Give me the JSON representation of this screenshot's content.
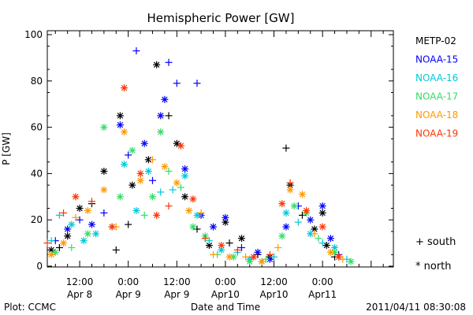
{
  "chart_data": {
    "type": "scatter",
    "title": "Hemispheric Power [GW]",
    "xlabel": "Date and Time",
    "ylabel": "P [GW]",
    "xlim": [
      "2011-04-08T04:00",
      "2011-04-11T17:30"
    ],
    "ylim": [
      0,
      100
    ],
    "yticks": [
      0,
      20,
      40,
      60,
      80,
      100
    ],
    "xticks": [
      {
        "t": "2011-04-08T12:00",
        "line1": "12:00",
        "line2": "Apr 8"
      },
      {
        "t": "2011-04-09T00:00",
        "line1": "0:00",
        "line2": "Apr 9"
      },
      {
        "t": "2011-04-09T12:00",
        "line1": "12:00",
        "line2": "Apr 9"
      },
      {
        "t": "2011-04-10T00:00",
        "line1": "0:00",
        "line2": "Apr10"
      },
      {
        "t": "2011-04-10T12:00",
        "line1": "12:00",
        "line2": "Apr10"
      },
      {
        "t": "2011-04-11T00:00",
        "line1": "0:00",
        "line2": "Apr11"
      }
    ],
    "legend_position": "right",
    "marker_legend": [
      {
        "symbol": "+",
        "label": "south"
      },
      {
        "symbol": "*",
        "label": "north"
      }
    ],
    "series": [
      {
        "name": "METP-02",
        "color": "#000000",
        "points": [
          {
            "t": "2011-04-08T05:00",
            "v": 7,
            "m": "north"
          },
          {
            "t": "2011-04-08T07:00",
            "v": 8,
            "m": "south"
          },
          {
            "t": "2011-04-08T09:00",
            "v": 13,
            "m": "north"
          },
          {
            "t": "2011-04-08T12:00",
            "v": 25,
            "m": "north"
          },
          {
            "t": "2011-04-08T15:00",
            "v": 27,
            "m": "south"
          },
          {
            "t": "2011-04-08T18:00",
            "v": 41,
            "m": "north"
          },
          {
            "t": "2011-04-08T21:00",
            "v": 7,
            "m": "south"
          },
          {
            "t": "2011-04-08T22:00",
            "v": 65,
            "m": "north"
          },
          {
            "t": "2011-04-09T00:00",
            "v": 18,
            "m": "south"
          },
          {
            "t": "2011-04-09T01:00",
            "v": 35,
            "m": "north"
          },
          {
            "t": "2011-04-09T05:00",
            "v": 46,
            "m": "north"
          },
          {
            "t": "2011-04-09T07:00",
            "v": 87,
            "m": "north"
          },
          {
            "t": "2011-04-09T10:00",
            "v": 65,
            "m": "south"
          },
          {
            "t": "2011-04-09T12:00",
            "v": 53,
            "m": "north"
          },
          {
            "t": "2011-04-09T14:00",
            "v": 30,
            "m": "north"
          },
          {
            "t": "2011-04-09T17:00",
            "v": 16,
            "m": "south"
          },
          {
            "t": "2011-04-09T20:00",
            "v": 9,
            "m": "north"
          },
          {
            "t": "2011-04-10T00:00",
            "v": 19,
            "m": "north"
          },
          {
            "t": "2011-04-10T01:00",
            "v": 10,
            "m": "south"
          },
          {
            "t": "2011-04-10T04:00",
            "v": 12,
            "m": "north"
          },
          {
            "t": "2011-04-10T08:00",
            "v": 5,
            "m": "south"
          },
          {
            "t": "2011-04-10T11:00",
            "v": 4,
            "m": "north"
          },
          {
            "t": "2011-04-10T15:00",
            "v": 51,
            "m": "south"
          },
          {
            "t": "2011-04-10T16:00",
            "v": 35,
            "m": "north"
          },
          {
            "t": "2011-04-10T19:00",
            "v": 22,
            "m": "south"
          },
          {
            "t": "2011-04-10T22:00",
            "v": 16,
            "m": "north"
          },
          {
            "t": "2011-04-11T00:00",
            "v": 23,
            "m": "north"
          },
          {
            "t": "2011-04-11T01:00",
            "v": 9,
            "m": "north"
          },
          {
            "t": "2011-04-11T03:00",
            "v": 4,
            "m": "south"
          }
        ]
      },
      {
        "name": "NOAA-15",
        "color": "#0000ff",
        "points": [
          {
            "t": "2011-04-08T06:00",
            "v": 11,
            "m": "south"
          },
          {
            "t": "2011-04-08T09:00",
            "v": 16,
            "m": "north"
          },
          {
            "t": "2011-04-08T12:00",
            "v": 20,
            "m": "south"
          },
          {
            "t": "2011-04-08T15:00",
            "v": 18,
            "m": "north"
          },
          {
            "t": "2011-04-08T18:00",
            "v": 23,
            "m": "south"
          },
          {
            "t": "2011-04-08T22:00",
            "v": 61,
            "m": "north"
          },
          {
            "t": "2011-04-09T00:00",
            "v": 48,
            "m": "south"
          },
          {
            "t": "2011-04-09T02:00",
            "v": 93,
            "m": "south"
          },
          {
            "t": "2011-04-09T04:00",
            "v": 53,
            "m": "north"
          },
          {
            "t": "2011-04-09T06:00",
            "v": 37,
            "m": "south"
          },
          {
            "t": "2011-04-09T08:00",
            "v": 65,
            "m": "north"
          },
          {
            "t": "2011-04-09T09:00",
            "v": 72,
            "m": "north"
          },
          {
            "t": "2011-04-09T10:00",
            "v": 88,
            "m": "south"
          },
          {
            "t": "2011-04-09T12:00",
            "v": 79,
            "m": "south"
          },
          {
            "t": "2011-04-09T14:00",
            "v": 42,
            "m": "north"
          },
          {
            "t": "2011-04-09T17:00",
            "v": 79,
            "m": "south"
          },
          {
            "t": "2011-04-09T18:00",
            "v": 22,
            "m": "north"
          },
          {
            "t": "2011-04-09T21:00",
            "v": 17,
            "m": "north"
          },
          {
            "t": "2011-04-10T00:00",
            "v": 21,
            "m": "north"
          },
          {
            "t": "2011-04-10T04:00",
            "v": 8,
            "m": "south"
          },
          {
            "t": "2011-04-10T08:00",
            "v": 6,
            "m": "north"
          },
          {
            "t": "2011-04-10T11:00",
            "v": 3,
            "m": "north"
          },
          {
            "t": "2011-04-10T15:00",
            "v": 17,
            "m": "north"
          },
          {
            "t": "2011-04-10T18:00",
            "v": 26,
            "m": "south"
          },
          {
            "t": "2011-04-10T21:00",
            "v": 20,
            "m": "north"
          },
          {
            "t": "2011-04-11T00:00",
            "v": 26,
            "m": "north"
          },
          {
            "t": "2011-04-11T02:00",
            "v": 12,
            "m": "north"
          },
          {
            "t": "2011-04-11T04:00",
            "v": 5,
            "m": "south"
          }
        ]
      },
      {
        "name": "NOAA-16",
        "color": "#00c8d8",
        "points": [
          {
            "t": "2011-04-08T05:00",
            "v": 11,
            "m": "south"
          },
          {
            "t": "2011-04-08T07:00",
            "v": 22,
            "m": "south"
          },
          {
            "t": "2011-04-08T10:00",
            "v": 18,
            "m": "north"
          },
          {
            "t": "2011-04-08T13:00",
            "v": 11,
            "m": "north"
          },
          {
            "t": "2011-04-08T16:00",
            "v": 14,
            "m": "north"
          },
          {
            "t": "2011-04-08T20:00",
            "v": 17,
            "m": "south"
          },
          {
            "t": "2011-04-08T23:00",
            "v": 44,
            "m": "north"
          },
          {
            "t": "2011-04-09T02:00",
            "v": 24,
            "m": "north"
          },
          {
            "t": "2011-04-09T05:00",
            "v": 41,
            "m": "north"
          },
          {
            "t": "2011-04-09T08:00",
            "v": 32,
            "m": "south"
          },
          {
            "t": "2011-04-09T11:00",
            "v": 33,
            "m": "south"
          },
          {
            "t": "2011-04-09T14:00",
            "v": 39,
            "m": "north"
          },
          {
            "t": "2011-04-09T17:00",
            "v": 22,
            "m": "north"
          },
          {
            "t": "2011-04-09T20:00",
            "v": 11,
            "m": "south"
          },
          {
            "t": "2011-04-09T23:00",
            "v": 7,
            "m": "north"
          },
          {
            "t": "2011-04-10T03:00",
            "v": 6,
            "m": "south"
          },
          {
            "t": "2011-04-10T06:00",
            "v": 3,
            "m": "north"
          },
          {
            "t": "2011-04-10T09:00",
            "v": 2,
            "m": "north"
          },
          {
            "t": "2011-04-10T12:00",
            "v": 4,
            "m": "south"
          },
          {
            "t": "2011-04-10T15:00",
            "v": 23,
            "m": "north"
          },
          {
            "t": "2011-04-10T18:00",
            "v": 19,
            "m": "south"
          },
          {
            "t": "2011-04-10T21:00",
            "v": 14,
            "m": "north"
          },
          {
            "t": "2011-04-11T00:00",
            "v": 10,
            "m": "south"
          },
          {
            "t": "2011-04-11T03:00",
            "v": 8,
            "m": "north"
          },
          {
            "t": "2011-04-11T06:00",
            "v": 3,
            "m": "south"
          }
        ]
      },
      {
        "name": "NOAA-17",
        "color": "#33dd66",
        "points": [
          {
            "t": "2011-04-08T06:00",
            "v": 6,
            "m": "north"
          },
          {
            "t": "2011-04-08T10:00",
            "v": 8,
            "m": "south"
          },
          {
            "t": "2011-04-08T14:00",
            "v": 14,
            "m": "north"
          },
          {
            "t": "2011-04-08T18:00",
            "v": 60,
            "m": "north"
          },
          {
            "t": "2011-04-08T22:00",
            "v": 30,
            "m": "north"
          },
          {
            "t": "2011-04-09T01:00",
            "v": 50,
            "m": "north"
          },
          {
            "t": "2011-04-09T04:00",
            "v": 22,
            "m": "south"
          },
          {
            "t": "2011-04-09T06:00",
            "v": 30,
            "m": "north"
          },
          {
            "t": "2011-04-09T08:00",
            "v": 58,
            "m": "north"
          },
          {
            "t": "2011-04-09T10:00",
            "v": 41,
            "m": "south"
          },
          {
            "t": "2011-04-09T13:00",
            "v": 34,
            "m": "south"
          },
          {
            "t": "2011-04-09T16:00",
            "v": 17,
            "m": "north"
          },
          {
            "t": "2011-04-09T19:00",
            "v": 13,
            "m": "north"
          },
          {
            "t": "2011-04-09T22:00",
            "v": 5,
            "m": "south"
          },
          {
            "t": "2011-04-10T02:00",
            "v": 4,
            "m": "north"
          },
          {
            "t": "2011-04-10T06:00",
            "v": 2,
            "m": "north"
          },
          {
            "t": "2011-04-10T10:00",
            "v": 3,
            "m": "south"
          },
          {
            "t": "2011-04-10T14:00",
            "v": 13,
            "m": "north"
          },
          {
            "t": "2011-04-10T17:00",
            "v": 26,
            "m": "north"
          },
          {
            "t": "2011-04-10T20:00",
            "v": 23,
            "m": "north"
          },
          {
            "t": "2011-04-10T23:00",
            "v": 12,
            "m": "south"
          },
          {
            "t": "2011-04-11T03:00",
            "v": 6,
            "m": "north"
          },
          {
            "t": "2011-04-11T07:00",
            "v": 2,
            "m": "north"
          }
        ]
      },
      {
        "name": "NOAA-18",
        "color": "#ff9900",
        "points": [
          {
            "t": "2011-04-08T05:00",
            "v": 5,
            "m": "north"
          },
          {
            "t": "2011-04-08T08:00",
            "v": 10,
            "m": "north"
          },
          {
            "t": "2011-04-08T11:00",
            "v": 21,
            "m": "south"
          },
          {
            "t": "2011-04-08T14:00",
            "v": 24,
            "m": "north"
          },
          {
            "t": "2011-04-08T18:00",
            "v": 33,
            "m": "north"
          },
          {
            "t": "2011-04-08T21:00",
            "v": 17,
            "m": "south"
          },
          {
            "t": "2011-04-08T23:00",
            "v": 58,
            "m": "north"
          },
          {
            "t": "2011-04-09T03:00",
            "v": 37,
            "m": "north"
          },
          {
            "t": "2011-04-09T06:00",
            "v": 46,
            "m": "south"
          },
          {
            "t": "2011-04-09T09:00",
            "v": 43,
            "m": "north"
          },
          {
            "t": "2011-04-09T12:00",
            "v": 36,
            "m": "north"
          },
          {
            "t": "2011-04-09T15:00",
            "v": 24,
            "m": "north"
          },
          {
            "t": "2011-04-09T18:00",
            "v": 23,
            "m": "south"
          },
          {
            "t": "2011-04-09T21:00",
            "v": 5,
            "m": "south"
          },
          {
            "t": "2011-04-10T01:00",
            "v": 4,
            "m": "north"
          },
          {
            "t": "2011-04-10T05:00",
            "v": 4,
            "m": "south"
          },
          {
            "t": "2011-04-10T09:00",
            "v": 2,
            "m": "north"
          },
          {
            "t": "2011-04-10T13:00",
            "v": 8,
            "m": "south"
          },
          {
            "t": "2011-04-10T16:00",
            "v": 33,
            "m": "north"
          },
          {
            "t": "2011-04-10T19:00",
            "v": 31,
            "m": "north"
          },
          {
            "t": "2011-04-10T22:00",
            "v": 14,
            "m": "south"
          },
          {
            "t": "2011-04-11T02:00",
            "v": 6,
            "m": "north"
          },
          {
            "t": "2011-04-11T05:00",
            "v": 3,
            "m": "south"
          }
        ]
      },
      {
        "name": "NOAA-19",
        "color": "#ff3300",
        "points": [
          {
            "t": "2011-04-08T04:00",
            "v": 10,
            "m": "south"
          },
          {
            "t": "2011-04-08T08:00",
            "v": 23,
            "m": "south"
          },
          {
            "t": "2011-04-08T11:00",
            "v": 30,
            "m": "north"
          },
          {
            "t": "2011-04-08T15:00",
            "v": 28,
            "m": "south"
          },
          {
            "t": "2011-04-08T20:00",
            "v": 17,
            "m": "north"
          },
          {
            "t": "2011-04-08T23:00",
            "v": 77,
            "m": "north"
          },
          {
            "t": "2011-04-09T03:00",
            "v": 40,
            "m": "north"
          },
          {
            "t": "2011-04-09T07:00",
            "v": 22,
            "m": "north"
          },
          {
            "t": "2011-04-09T10:00",
            "v": 26,
            "m": "south"
          },
          {
            "t": "2011-04-09T13:00",
            "v": 52,
            "m": "north"
          },
          {
            "t": "2011-04-09T16:00",
            "v": 29,
            "m": "north"
          },
          {
            "t": "2011-04-09T19:00",
            "v": 12,
            "m": "south"
          },
          {
            "t": "2011-04-09T23:00",
            "v": 9,
            "m": "north"
          },
          {
            "t": "2011-04-10T03:00",
            "v": 7,
            "m": "south"
          },
          {
            "t": "2011-04-10T07:00",
            "v": 4,
            "m": "north"
          },
          {
            "t": "2011-04-10T11:00",
            "v": 5,
            "m": "south"
          },
          {
            "t": "2011-04-10T14:00",
            "v": 27,
            "m": "north"
          },
          {
            "t": "2011-04-10T16:00",
            "v": 36,
            "m": "south"
          },
          {
            "t": "2011-04-10T20:00",
            "v": 24,
            "m": "north"
          },
          {
            "t": "2011-04-11T00:00",
            "v": 17,
            "m": "north"
          },
          {
            "t": "2011-04-11T04:00",
            "v": 4,
            "m": "north"
          }
        ]
      }
    ]
  },
  "footer": {
    "credit": "Plot: CCMC",
    "timestamp": "2011/04/11 08:30:08"
  }
}
